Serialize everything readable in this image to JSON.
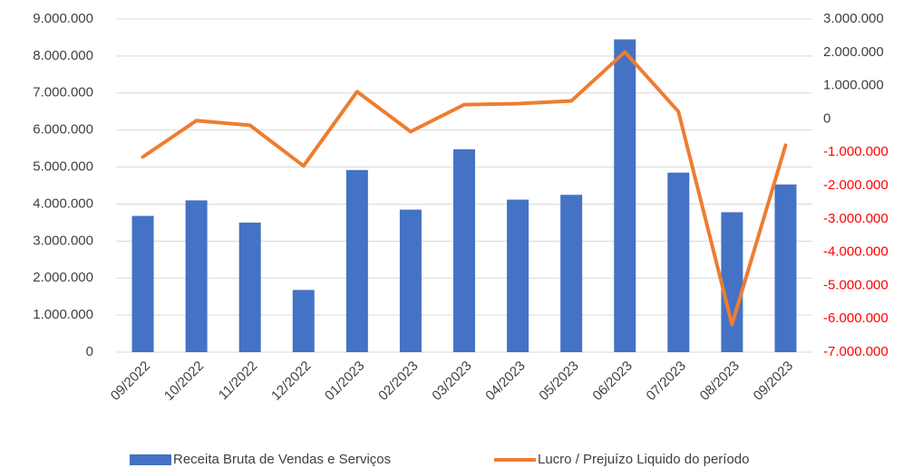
{
  "chart_data": {
    "type": "bar_line",
    "categories": [
      "09/2022",
      "10/2022",
      "11/2022",
      "12/2022",
      "01/2023",
      "02/2023",
      "03/2023",
      "04/2023",
      "05/2023",
      "06/2023",
      "07/2023",
      "08/2023",
      "09/2023"
    ],
    "series": [
      {
        "name": "Receita Bruta de Vendas e Serviços",
        "color": "#4472c4",
        "type": "bar",
        "values": [
          3680000,
          4100000,
          3500000,
          1680000,
          4920000,
          3850000,
          5480000,
          4120000,
          4250000,
          8450000,
          4850000,
          3780000,
          4530000
        ]
      },
      {
        "name": "Lucro / Prejuízo Liquido do período",
        "color": "#ed7d31",
        "type": "line",
        "axis": "y2",
        "values": [
          -1140000,
          -50000,
          -190000,
          -1410000,
          820000,
          -380000,
          430000,
          460000,
          540000,
          2010000,
          220000,
          -6170000,
          -790000
        ]
      }
    ],
    "ylim": [
      0,
      9000000
    ],
    "yticks": [
      0,
      {
        "value": 1000000,
        "label": "1.000.000"
      },
      {
        "value": 2000000,
        "label": "2.000.000"
      },
      {
        "value": 3000000,
        "label": "3.000.000"
      },
      {
        "value": 4000000,
        "label": "4.000.000"
      },
      {
        "value": 5000000,
        "label": "5.000.000"
      },
      {
        "value": 6000000,
        "label": "6.000.000"
      },
      {
        "value": 7000000,
        "label": "7.000.000"
      },
      {
        "value": 8000000,
        "label": "8.000.000"
      },
      {
        "value": 9000000,
        "label": "9.000.000"
      }
    ],
    "y2lim": [
      -7000000,
      3000000
    ],
    "y2ticks": [
      {
        "value": -7000000,
        "label": "-7.000.000"
      },
      {
        "value": -6000000,
        "label": "-6.000.000"
      },
      {
        "value": -5000000,
        "label": "-5.000.000"
      },
      {
        "value": -4000000,
        "label": "-4.000.000"
      },
      {
        "value": -3000000,
        "label": "-3.000.000"
      },
      {
        "value": -2000000,
        "label": "-2.000.000"
      },
      {
        "value": -1000000,
        "label": "-1.000.000"
      },
      0,
      {
        "value": 1000000,
        "label": "1.000.000"
      },
      {
        "value": 2000000,
        "label": "2.000.000"
      },
      {
        "value": 3000000,
        "label": "3.000.000"
      }
    ],
    "y2_negative_label_color": "#ff0000",
    "grid": true,
    "legend": "bottom"
  }
}
